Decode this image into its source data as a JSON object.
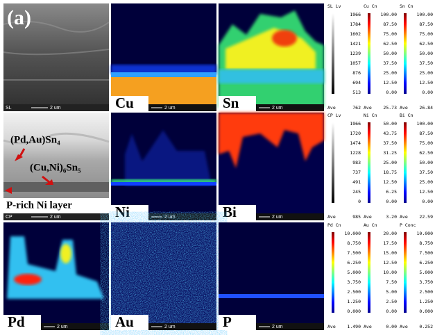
{
  "panel_label": "(a)",
  "panels": [
    {
      "detector": "SL",
      "scale": "2 um"
    },
    {
      "element": "Cu",
      "scale": "2 um"
    },
    {
      "element": "Sn",
      "scale": "2 um"
    },
    {
      "detector": "CP",
      "scale": "2 um",
      "annotations": [
        "(Pd,Au)Sn₄",
        "(Cu,Ni)₆Sn₅",
        "P-rich Ni layer"
      ]
    },
    {
      "element": "Ni",
      "scale": "2 um"
    },
    {
      "element": "Bi",
      "scale": "2 um"
    },
    {
      "element": "Pd",
      "scale": "2 um"
    },
    {
      "element": "Au",
      "scale": "2 um"
    },
    {
      "element": "P",
      "scale": "2 um"
    }
  ],
  "colorbars": [
    [
      {
        "header": "SL  Lv",
        "ticks": [
          "1966",
          "1784",
          "1602",
          "1421",
          "1239",
          "1057",
          "876",
          "694",
          "513"
        ],
        "ave_label": "Ave",
        "ave": "762"
      },
      {
        "header": "Cu  Cn",
        "ticks": [
          "100.00",
          "87.50",
          "75.00",
          "62.50",
          "50.00",
          "37.50",
          "25.00",
          "12.50",
          "0.00"
        ],
        "ave_label": "Ave",
        "ave": "25.73"
      },
      {
        "header": "Sn  Cn",
        "ticks": [
          "100.00",
          "87.50",
          "75.00",
          "62.50",
          "50.00",
          "37.50",
          "25.00",
          "12.50",
          "0.00"
        ],
        "ave_label": "Ave",
        "ave": "26.84"
      }
    ],
    [
      {
        "header": "CP  Lv",
        "ticks": [
          "1966",
          "1720",
          "1474",
          "1228",
          "983",
          "737",
          "491",
          "245",
          "0"
        ],
        "ave_label": "Ave",
        "ave": "985"
      },
      {
        "header": "Ni  Cn",
        "ticks": [
          "50.00",
          "43.75",
          "37.50",
          "31.25",
          "25.00",
          "18.75",
          "12.50",
          "6.25",
          "0.00"
        ],
        "ave_label": "Ave",
        "ave": "3.20"
      },
      {
        "header": "Bi  Cn",
        "ticks": [
          "100.00",
          "87.50",
          "75.00",
          "62.50",
          "50.00",
          "37.50",
          "25.00",
          "12.50",
          "0.00"
        ],
        "ave_label": "Ave",
        "ave": "22.59"
      }
    ],
    [
      {
        "header": "Pd  Cn",
        "ticks": [
          "10.000",
          "8.750",
          "7.500",
          "6.250",
          "5.000",
          "3.750",
          "2.500",
          "1.250",
          "0.000"
        ],
        "ave_label": "Ave",
        "ave": "1.490"
      },
      {
        "header": "Au  Cn",
        "ticks": [
          "20.00",
          "17.50",
          "15.00",
          "12.50",
          "10.00",
          "7.50",
          "5.00",
          "2.50",
          "0.00"
        ],
        "ave_label": "Ave",
        "ave": "0.00"
      },
      {
        "header": "P  Conc",
        "ticks": [
          "10.000",
          "8.750",
          "7.500",
          "6.250",
          "5.000",
          "3.750",
          "2.500",
          "1.250",
          "0.000"
        ],
        "ave_label": "Ave",
        "ave": "0.252"
      }
    ]
  ]
}
